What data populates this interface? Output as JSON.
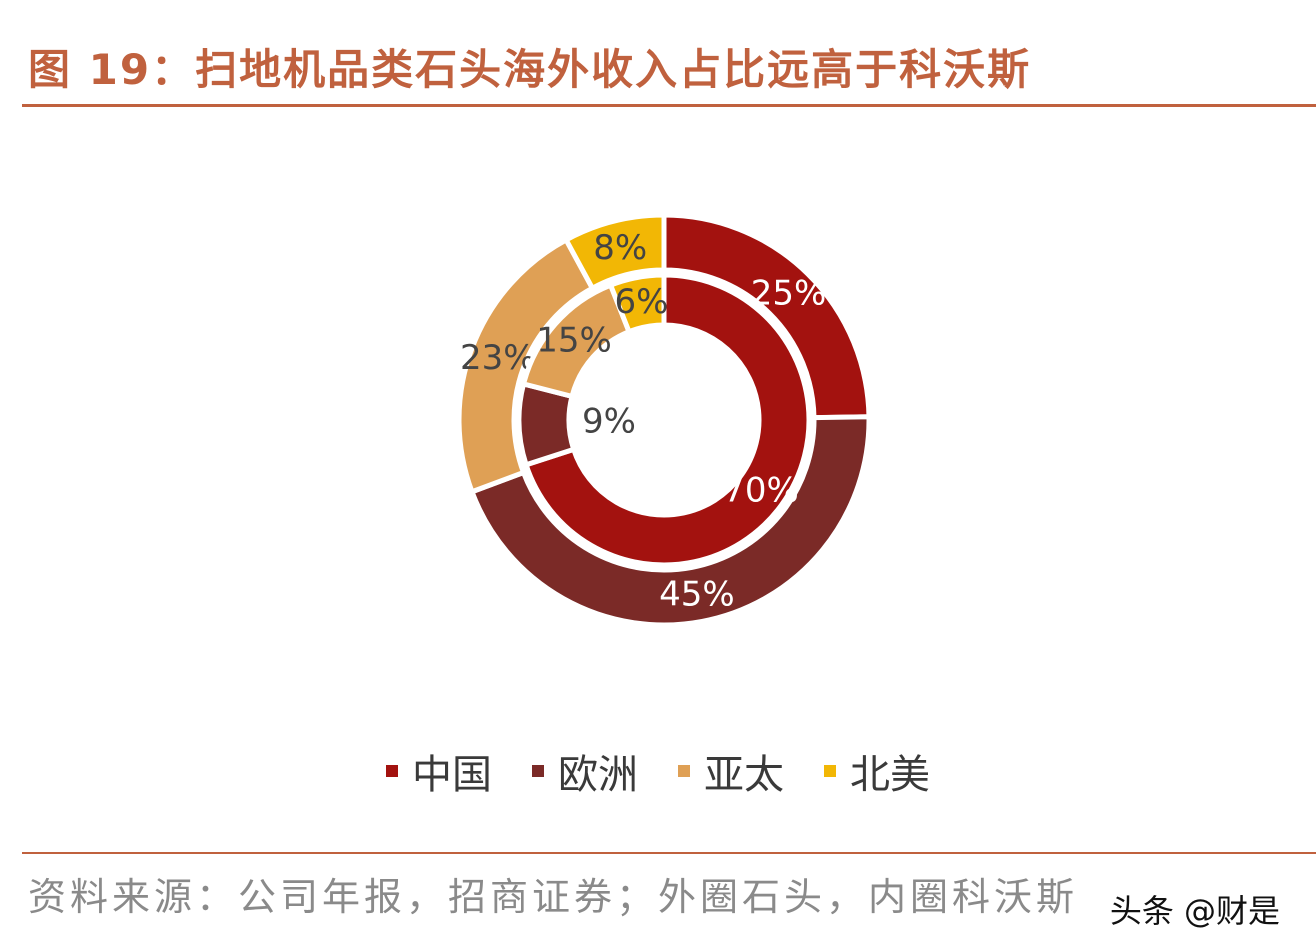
{
  "header": {
    "title": "图 19：扫地机品类石头海外收入占比远高于科沃斯"
  },
  "chart_data": {
    "type": "donut",
    "categories": [
      "中国",
      "欧洲",
      "亚太",
      "北美"
    ],
    "colors": [
      "#a3120f",
      "#7b2a27",
      "#dfa055",
      "#f2b705"
    ],
    "series": [
      {
        "ring": "outer",
        "values": [
          25,
          45,
          23,
          8
        ],
        "labels": [
          "25%",
          "45%",
          "23%",
          "8%"
        ]
      },
      {
        "ring": "inner",
        "values": [
          70,
          9,
          15,
          6
        ],
        "labels": [
          "70%",
          "9%",
          "15%",
          "6%"
        ]
      }
    ],
    "legend_position": "bottom"
  },
  "footer": {
    "source": "资料来源：公司年报，招商证券；外圈石头，内圈科沃斯",
    "watermark": "头条 @财是"
  }
}
